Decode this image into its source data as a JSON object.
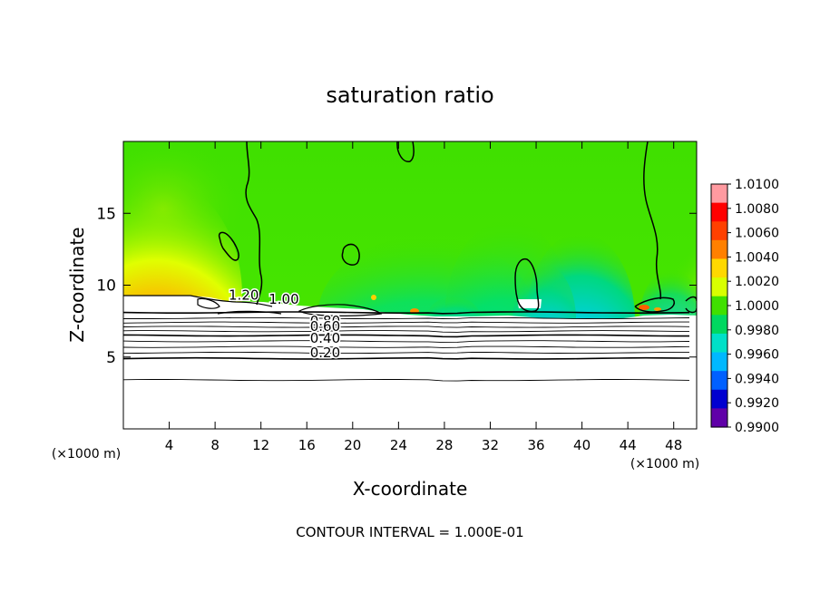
{
  "chart_data": {
    "type": "heatmap",
    "title": "saturation ratio",
    "xlabel": "X-coordinate",
    "ylabel": "Z-coordinate",
    "x_unit_left": "(×1000 m)",
    "x_unit_right": "(×1000 m)",
    "footer": "CONTOUR INTERVAL = 1.000E-01",
    "xlim": [
      0,
      50
    ],
    "ylim": [
      0,
      20
    ],
    "x_ticks": [
      4,
      8,
      12,
      16,
      20,
      24,
      28,
      32,
      36,
      40,
      44,
      48
    ],
    "y_ticks": [
      5,
      10,
      15
    ],
    "colorbar": {
      "range": [
        0.99,
        1.01
      ],
      "labels": [
        "1.0100",
        "1.0080",
        "1.0060",
        "1.0040",
        "1.0020",
        "1.0000",
        "0.9980",
        "0.9960",
        "0.9940",
        "0.9920",
        "0.9900"
      ],
      "values": [
        1.01,
        1.008,
        1.006,
        1.004,
        1.002,
        1.0,
        0.998,
        0.996,
        0.994,
        0.992,
        0.99
      ],
      "colors": [
        "#ff9aa0",
        "#ff0000",
        "#ff4000",
        "#ff8000",
        "#ffd800",
        "#d8ff00",
        "#40e000",
        "#00d860",
        "#00e0c8",
        "#00b8ff",
        "#0060ff",
        "#0000d0",
        "#6000a8"
      ]
    },
    "contour_labels": [
      {
        "text": "1.20",
        "x": 10.5,
        "z": 9.0
      },
      {
        "text": "1.00",
        "x": 14.0,
        "z": 8.7
      },
      {
        "text": "0.80",
        "x": 17.6,
        "z": 7.2
      },
      {
        "text": "0.60",
        "x": 17.6,
        "z": 6.8
      },
      {
        "text": "0.40",
        "x": 17.6,
        "z": 6.0
      },
      {
        "text": "0.20",
        "x": 17.6,
        "z": 5.0
      }
    ],
    "contour_levels": [
      {
        "z": 8.1,
        "thick": true
      },
      {
        "z": 7.7,
        "thick": false
      },
      {
        "z": 7.4,
        "thick": false
      },
      {
        "z": 7.1,
        "thick": false
      },
      {
        "z": 6.8,
        "thick": false
      },
      {
        "z": 6.5,
        "thick": true
      },
      {
        "z": 6.1,
        "thick": false
      },
      {
        "z": 5.7,
        "thick": false
      },
      {
        "z": 5.3,
        "thick": false
      },
      {
        "z": 4.9,
        "thick": true
      },
      {
        "z": 3.4,
        "thick": false
      }
    ]
  }
}
